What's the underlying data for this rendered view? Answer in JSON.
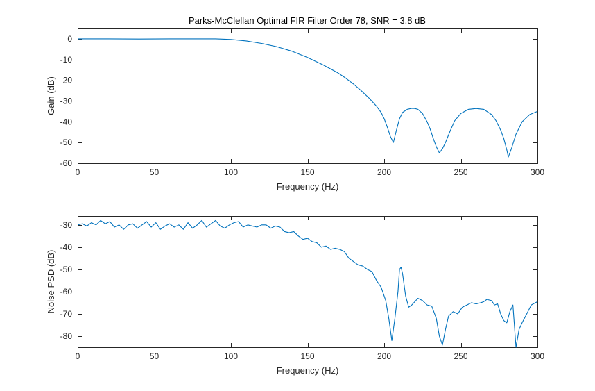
{
  "chart_data": [
    {
      "type": "line",
      "title": "Parks-McClellan Optimal FIR Filter Order 78, SNR = 3.8 dB",
      "xlabel": "Frequency (Hz)",
      "ylabel": "Gain (dB)",
      "xlim": [
        0,
        300
      ],
      "ylim": [
        -60,
        5
      ],
      "xticks": [
        0,
        50,
        100,
        150,
        200,
        250,
        300
      ],
      "yticks": [
        0,
        -10,
        -20,
        -30,
        -40,
        -50,
        -60
      ],
      "xtick_labels": [
        "0",
        "50",
        "100",
        "150",
        "200",
        "250",
        "300"
      ],
      "ytick_labels": [
        "0",
        "-10",
        "-20",
        "-30",
        "-40",
        "-50",
        "-60"
      ],
      "grid": false,
      "color": "#0072BD",
      "series": [
        {
          "x": [
            0,
            20,
            40,
            60,
            80,
            90,
            100,
            110,
            120,
            130,
            140,
            150,
            160,
            170,
            175,
            180,
            185,
            190,
            195,
            198,
            200,
            202,
            204,
            206,
            208,
            210,
            212,
            215,
            218,
            220,
            222,
            225,
            228,
            230,
            232,
            234,
            236,
            238,
            240,
            243,
            246,
            250,
            255,
            260,
            265,
            270,
            273,
            276,
            278,
            280,
            281,
            283,
            286,
            290,
            295,
            300
          ],
          "y": [
            0,
            0,
            -0.1,
            0,
            0,
            0,
            -0.3,
            -1,
            -2.2,
            -3.8,
            -6,
            -9,
            -12.5,
            -16.5,
            -19,
            -21.8,
            -25,
            -28.5,
            -32.5,
            -35.5,
            -38.5,
            -42.5,
            -47,
            -50,
            -44,
            -38.5,
            -35.5,
            -34,
            -33.5,
            -33.6,
            -34,
            -36,
            -40,
            -43.5,
            -48,
            -52,
            -55,
            -53,
            -50,
            -44.5,
            -39.5,
            -36,
            -34,
            -33.6,
            -34,
            -36.5,
            -39.5,
            -44,
            -48,
            -53.5,
            -57,
            -53,
            -46,
            -40,
            -36.5,
            -35
          ]
        }
      ]
    },
    {
      "type": "line",
      "xlabel": "Frequency (Hz)",
      "ylabel": "Noise PSD (dB)",
      "xlim": [
        0,
        300
      ],
      "ylim": [
        -85,
        -26
      ],
      "xticks": [
        0,
        50,
        100,
        150,
        200,
        250,
        300
      ],
      "yticks": [
        -30,
        -40,
        -50,
        -60,
        -70,
        -80
      ],
      "xtick_labels": [
        "0",
        "50",
        "100",
        "150",
        "200",
        "250",
        "300"
      ],
      "ytick_labels": [
        "-30",
        "-40",
        "-50",
        "-60",
        "-70",
        "-80"
      ],
      "grid": false,
      "color": "#0072BD",
      "series": [
        {
          "x": [
            0,
            3,
            6,
            9,
            12,
            15,
            18,
            21,
            24,
            27,
            30,
            33,
            36,
            39,
            42,
            45,
            48,
            51,
            54,
            57,
            60,
            63,
            66,
            69,
            72,
            75,
            78,
            81,
            84,
            87,
            90,
            93,
            96,
            99,
            102,
            105,
            108,
            111,
            114,
            117,
            120,
            123,
            126,
            129,
            132,
            135,
            138,
            141,
            144,
            147,
            150,
            153,
            156,
            159,
            162,
            165,
            168,
            171,
            174,
            177,
            180,
            183,
            186,
            189,
            192,
            195,
            198,
            201,
            203,
            205,
            207,
            209,
            210,
            211,
            212,
            214,
            216,
            218,
            220,
            222,
            225,
            228,
            231,
            234,
            236,
            238,
            240,
            242,
            245,
            248,
            251,
            254,
            257,
            260,
            263,
            265,
            267,
            270,
            272,
            274,
            276,
            278,
            280,
            282,
            284,
            286,
            288,
            290,
            293,
            296,
            300
          ],
          "y": [
            -30,
            -29.5,
            -30.5,
            -29,
            -30,
            -28,
            -29.5,
            -28.5,
            -31,
            -30,
            -32,
            -30,
            -29.5,
            -31.5,
            -30,
            -28.5,
            -31,
            -29,
            -32,
            -30.5,
            -29.5,
            -31,
            -30,
            -32,
            -29,
            -31.5,
            -30,
            -28,
            -31,
            -29.5,
            -28,
            -30.5,
            -31.5,
            -30,
            -29,
            -28.5,
            -31,
            -30,
            -30.5,
            -31,
            -30,
            -30,
            -31.5,
            -30.5,
            -31,
            -33,
            -33.5,
            -33,
            -35,
            -36.5,
            -36,
            -37.5,
            -38,
            -40,
            -39.5,
            -41,
            -40.5,
            -41,
            -42,
            -45,
            -46.5,
            -48,
            -48.5,
            -50,
            -51,
            -55,
            -58,
            -64,
            -72,
            -82,
            -72,
            -60,
            -50,
            -49,
            -52,
            -62,
            -67,
            -66,
            -64.5,
            -63,
            -64,
            -66,
            -66.5,
            -72,
            -80,
            -84,
            -77,
            -71,
            -69,
            -70,
            -67,
            -66,
            -65,
            -65.5,
            -65,
            -64.5,
            -63.5,
            -64,
            -66,
            -65.5,
            -70,
            -73,
            -74,
            -69,
            -66,
            -85,
            -77,
            -74,
            -70,
            -66,
            -64.5
          ]
        }
      ]
    }
  ]
}
